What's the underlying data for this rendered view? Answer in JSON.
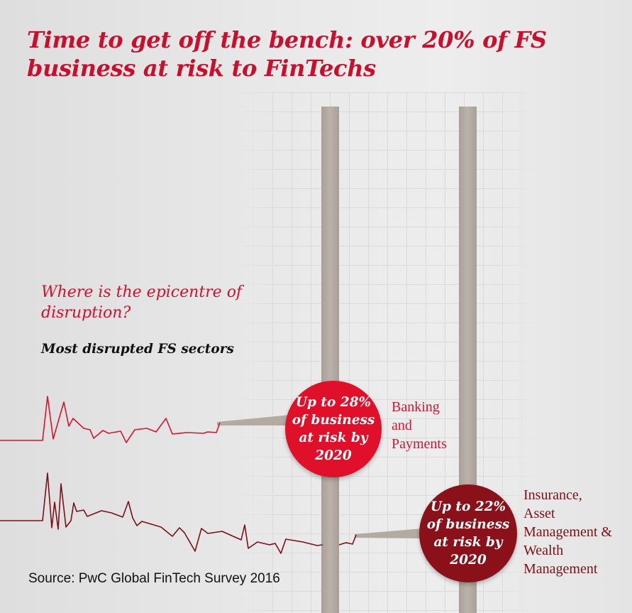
{
  "title": "Time to get off the bench: over 20% of FS business at risk to FinTechs",
  "question": "Where is the epicentre of disruption?",
  "subheading": "Most disrupted FS sectors",
  "sectors": [
    {
      "stat": "Up to 28% of business at risk by 2020",
      "name": "Banking and Payments",
      "color": "#e0102b"
    },
    {
      "stat": "Up to 22% of business at risk by 2020",
      "name": "Insurance, Asset Management & Wealth Management",
      "color": "#8a1119"
    }
  ],
  "source": "Source: PwC Global FinTech Survey 2016",
  "colors": {
    "title": "#c8102e",
    "pole": "#b3aaa1"
  }
}
